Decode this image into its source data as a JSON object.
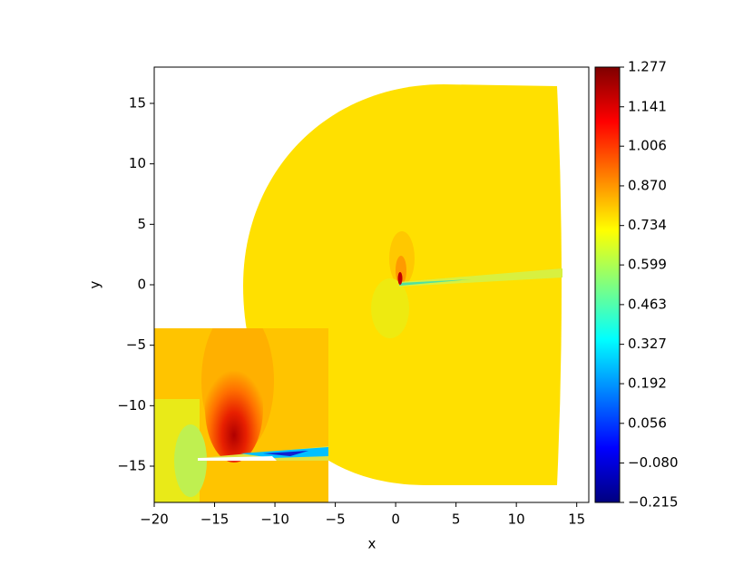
{
  "chart_data": {
    "type": "contour",
    "xlabel": "x",
    "ylabel": "y",
    "xlim": [
      -20,
      16
    ],
    "ylim": [
      -18,
      18
    ],
    "xticks": [
      {
        "value": -20,
        "label": "−20"
      },
      {
        "value": -15,
        "label": "−15"
      },
      {
        "value": -10,
        "label": "−10"
      },
      {
        "value": -5,
        "label": "−5"
      },
      0,
      5,
      10,
      15
    ],
    "yticks": [
      {
        "value": -15,
        "label": "−15"
      },
      {
        "value": -10,
        "label": "−10"
      },
      {
        "value": -5,
        "label": "−5"
      },
      0,
      5,
      10,
      15
    ],
    "colormap": "jet",
    "clim": [
      -0.215,
      1.277
    ],
    "cticks": [
      {
        "value": -0.215,
        "label": "−0.215"
      },
      {
        "value": -0.08,
        "label": "−0.080"
      },
      0.056,
      0.192,
      0.327,
      0.463,
      0.599,
      0.734,
      {
        "value": 0.87,
        "label": "0.870"
      },
      1.006,
      1.141,
      1.277
    ]
  }
}
